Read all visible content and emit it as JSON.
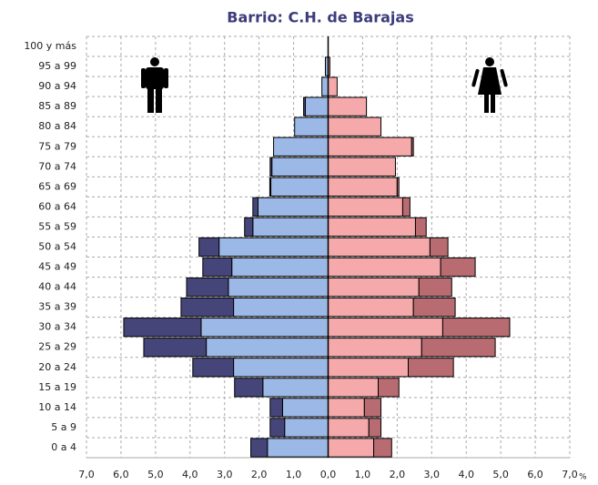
{
  "chart_data": {
    "type": "pyramid",
    "title": "Barrio: C.H. de Barajas",
    "categories": [
      "0 a 4",
      "5 a 9",
      "10 a 14",
      "15 a 19",
      "20 a 24",
      "25 a 29",
      "30 a 34",
      "35 a 39",
      "40 a 44",
      "45 a 49",
      "50 a 54",
      "55 a 59",
      "60 a 64",
      "65 a 69",
      "70 a 74",
      "75 a 79",
      "80 a 84",
      "85 a 89",
      "90 a 94",
      "95 a 99",
      "100 y más"
    ],
    "series": [
      {
        "side": "left",
        "color": "#9bb8e6",
        "values": [
          1.76,
          1.26,
          1.32,
          1.89,
          2.74,
          3.53,
          3.68,
          2.74,
          2.89,
          2.79,
          3.16,
          2.18,
          2.03,
          1.66,
          1.63,
          1.58,
          0.97,
          0.66,
          0.18,
          0.08,
          0
        ]
      },
      {
        "side": "left",
        "color": "#45457a",
        "values": [
          0.48,
          0.42,
          0.36,
          0.82,
          1.18,
          1.81,
          2.24,
          1.52,
          1.21,
          0.84,
          0.58,
          0.24,
          0.15,
          0.03,
          0.05,
          0,
          0,
          0.05,
          0,
          0,
          0
        ]
      },
      {
        "side": "right",
        "color": "#f5a9aa",
        "values": [
          1.32,
          1.18,
          1.05,
          1.45,
          2.32,
          2.71,
          3.32,
          2.47,
          2.63,
          3.26,
          2.95,
          2.53,
          2.16,
          2.0,
          1.95,
          2.42,
          1.53,
          1.11,
          0.26,
          0.05,
          0
        ]
      },
      {
        "side": "right",
        "color": "#b86b70",
        "values": [
          0.52,
          0.35,
          0.48,
          0.6,
          1.31,
          2.13,
          1.94,
          1.21,
          0.95,
          1.0,
          0.52,
          0.31,
          0.21,
          0.05,
          0,
          0.05,
          0,
          0,
          0,
          0,
          0
        ]
      }
    ],
    "xlim": [
      -7,
      7
    ],
    "xticks": [
      {
        "value": -7,
        "label": "7,0"
      },
      {
        "value": -6,
        "label": "6,0"
      },
      {
        "value": -5,
        "label": "5,0"
      },
      {
        "value": -4,
        "label": "4,0"
      },
      {
        "value": -3,
        "label": "3,0"
      },
      {
        "value": -2,
        "label": "2,0"
      },
      {
        "value": -1,
        "label": "1,0"
      },
      {
        "value": 0,
        "label": "0,0"
      },
      {
        "value": 1,
        "label": "1,0"
      },
      {
        "value": 2,
        "label": "2,0"
      },
      {
        "value": 3,
        "label": "3,0"
      },
      {
        "value": 4,
        "label": "4,0"
      },
      {
        "value": 5,
        "label": "5,0"
      },
      {
        "value": 6,
        "label": "6,0"
      },
      {
        "value": 7,
        "label": "7,0"
      }
    ],
    "x_unit": "%",
    "grid": true
  }
}
